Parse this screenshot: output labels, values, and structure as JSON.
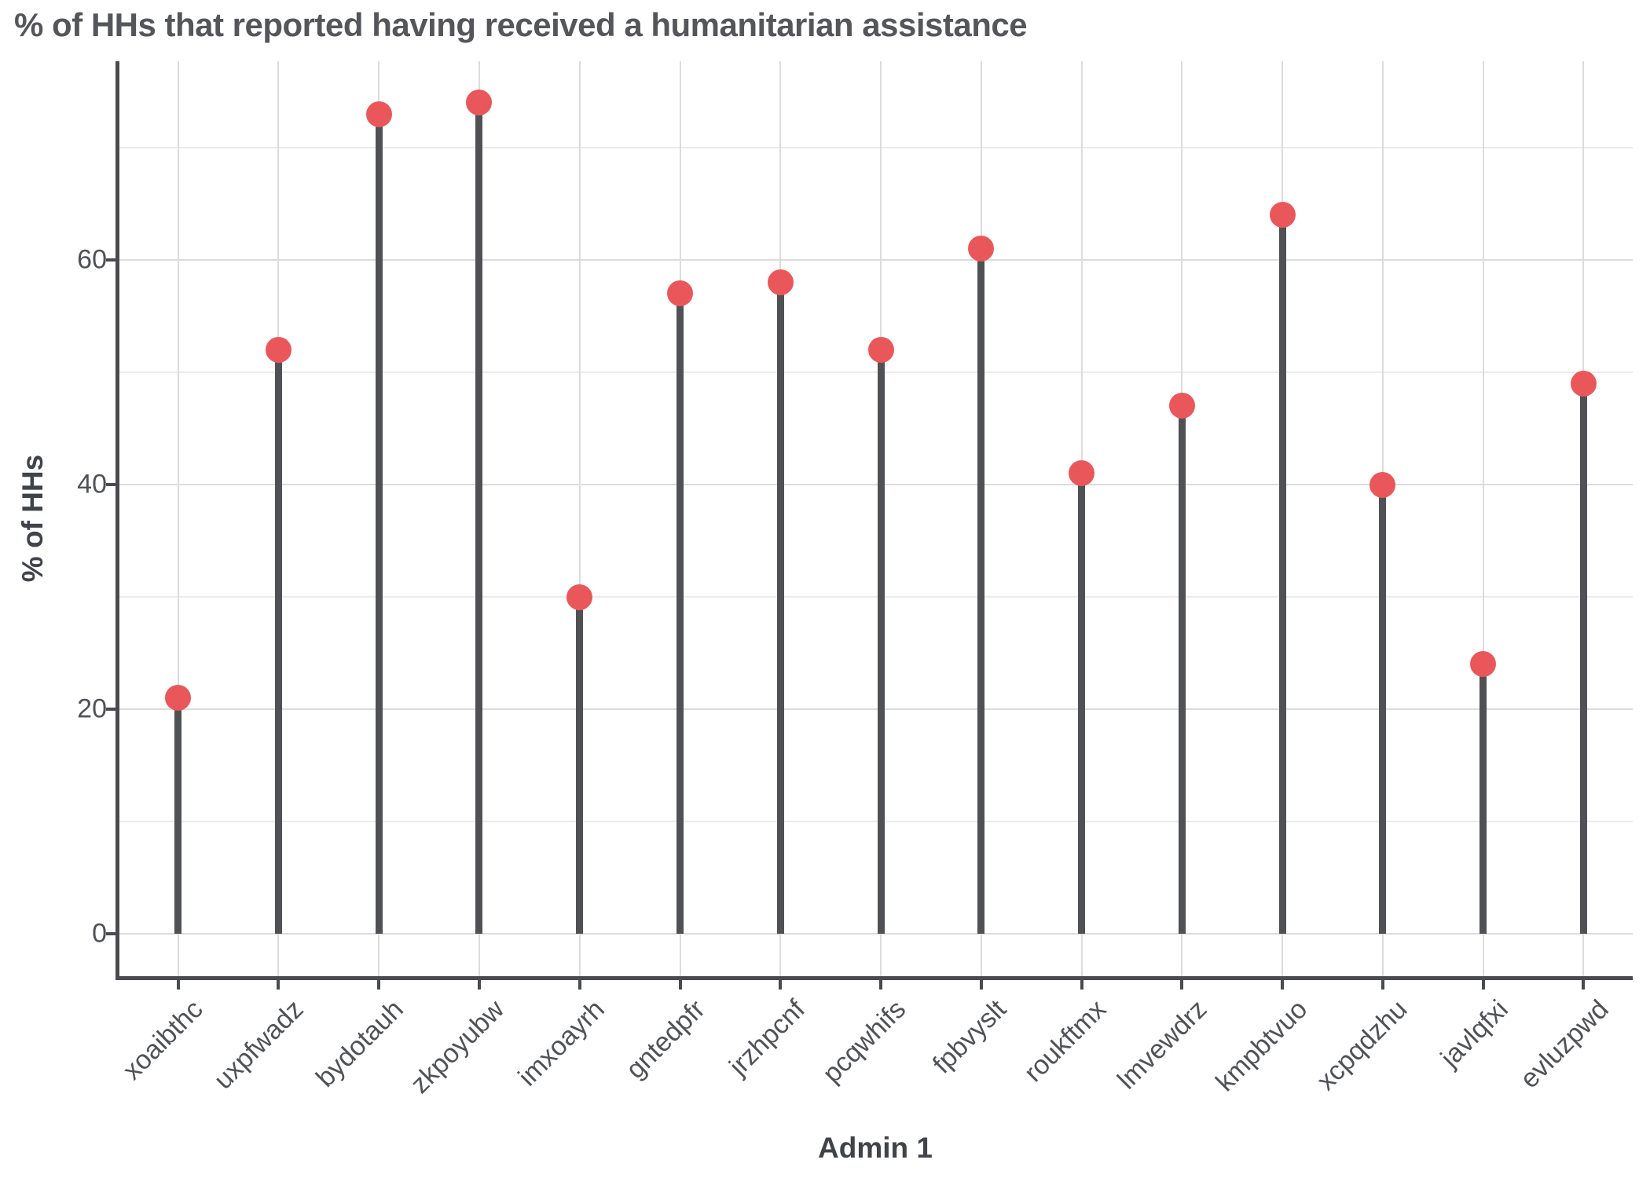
{
  "chart_data": {
    "type": "lollipop",
    "title": "% of HHs that reported having received a humanitarian assistance",
    "xlabel": "Admin 1",
    "ylabel": "% of HHs",
    "categories": [
      "xoaibthc",
      "uxpfwadz",
      "bydotauh",
      "zkpoyubw",
      "imxoayrh",
      "gntedpfr",
      "jrzhpcnf",
      "pcqwhifs",
      "fpbvyslt",
      "roukftmx",
      "lmvewdrz",
      "kmpbtvuo",
      "xcpqdzhu",
      "javlqfxi",
      "evluzpwd"
    ],
    "values": [
      21,
      52,
      73,
      74,
      30,
      57,
      58,
      52,
      61,
      41,
      47,
      64,
      40,
      24,
      49
    ],
    "yticks": [
      0,
      20,
      40,
      60
    ],
    "yticks_minor": [
      10,
      30,
      50,
      70
    ],
    "ylim": [
      -3.8,
      77.7
    ],
    "grid": "on",
    "legend": "none"
  },
  "colors": {
    "dot": "#EA575A",
    "stem": "#505154",
    "axis_line": "#4A4B4E",
    "grid_major": "#DCDCDC",
    "grid_minor": "#EBEBEB",
    "tick_text": "#4F5256",
    "title_text": "#54565A",
    "axis_title_text": "#404347"
  }
}
